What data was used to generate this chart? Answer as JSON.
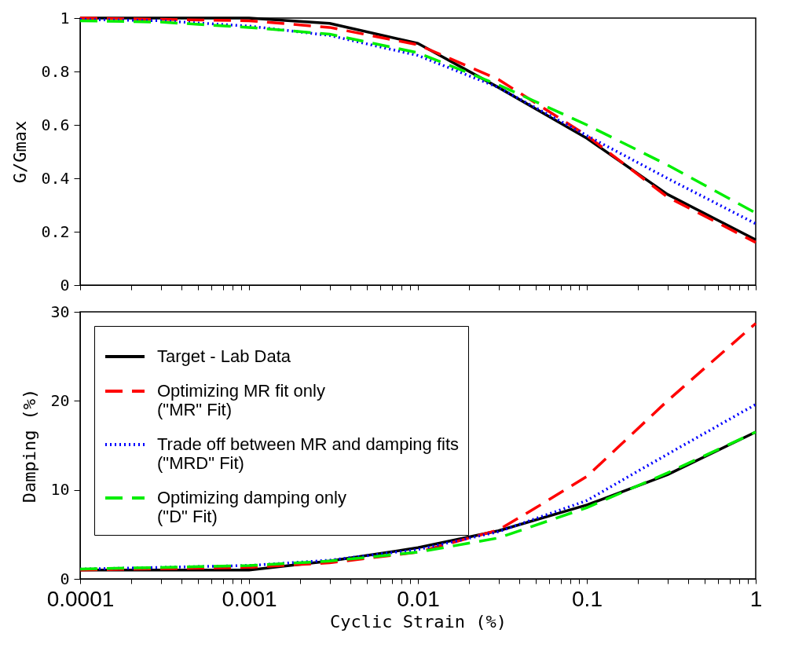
{
  "chart_data": [
    {
      "type": "line",
      "ylabel": "G/Gmax",
      "log": "x",
      "xlim": [
        0.0001,
        1
      ],
      "ylim": [
        0,
        1
      ],
      "yticks": [
        0,
        0.2,
        0.4,
        0.6,
        0.8,
        1
      ],
      "xticks": [
        0.0001,
        {
          "value": 0.0002,
          "label": null
        },
        {
          "value": 0.0003,
          "label": null
        },
        {
          "value": 0.0004,
          "label": null
        },
        {
          "value": 0.0005,
          "label": null
        },
        {
          "value": 0.0006,
          "label": null
        },
        {
          "value": 0.0007,
          "label": null
        },
        {
          "value": 0.0008,
          "label": null
        },
        {
          "value": 0.0009,
          "label": null
        },
        0.001,
        {
          "value": 0.002,
          "label": null
        },
        {
          "value": 0.003,
          "label": null
        },
        {
          "value": 0.004,
          "label": null
        },
        {
          "value": 0.005,
          "label": null
        },
        {
          "value": 0.006,
          "label": null
        },
        {
          "value": 0.007,
          "label": null
        },
        {
          "value": 0.008,
          "label": null
        },
        {
          "value": 0.009,
          "label": null
        },
        0.01,
        {
          "value": 0.02,
          "label": null
        },
        {
          "value": 0.03,
          "label": null
        },
        {
          "value": 0.04,
          "label": null
        },
        {
          "value": 0.05,
          "label": null
        },
        {
          "value": 0.06,
          "label": null
        },
        {
          "value": 0.07,
          "label": null
        },
        {
          "value": 0.08,
          "label": null
        },
        {
          "value": 0.09,
          "label": null
        },
        0.1,
        {
          "value": 0.2,
          "label": null
        },
        {
          "value": 0.3,
          "label": null
        },
        {
          "value": 0.4,
          "label": null
        },
        {
          "value": 0.5,
          "label": null
        },
        {
          "value": 0.6,
          "label": null
        },
        {
          "value": 0.7,
          "label": null
        },
        {
          "value": 0.8,
          "label": null
        },
        {
          "value": 0.9,
          "label": null
        },
        1
      ],
      "tick_labels": "y",
      "grid": false,
      "marker": "none",
      "series": [
        {
          "color": "#000000",
          "line_style": "solid",
          "x": [
            0.0001,
            0.001,
            0.003,
            0.01,
            0.03,
            0.1,
            0.3,
            1
          ],
          "values": [
            1,
            1,
            0.98,
            0.905,
            0.74,
            0.55,
            0.34,
            0.17
          ]
        },
        {
          "color": "#ff0000",
          "line_style": "dashed",
          "x": [
            0.0001,
            0.001,
            0.003,
            0.01,
            0.03,
            0.1,
            0.3,
            1
          ],
          "values": [
            1,
            0.99,
            0.965,
            0.9,
            0.77,
            0.56,
            0.33,
            0.16
          ]
        },
        {
          "color": "#0000ff",
          "line_style": "dotted",
          "x": [
            0.0001,
            0.0003,
            0.001,
            0.003,
            0.01,
            0.03,
            0.1,
            0.3,
            1
          ],
          "values": [
            0.995,
            0.99,
            0.97,
            0.935,
            0.86,
            0.74,
            0.56,
            0.4,
            0.23
          ]
        },
        {
          "color": "#00ee00",
          "line_style": "dashed",
          "x": [
            0.0001,
            0.0003,
            0.001,
            0.003,
            0.01,
            0.03,
            0.1,
            0.3,
            1
          ],
          "values": [
            0.99,
            0.985,
            0.965,
            0.94,
            0.87,
            0.75,
            0.6,
            0.45,
            0.27
          ]
        }
      ]
    },
    {
      "type": "line",
      "ylabel": "Damping (%)",
      "xlabel": "Cyclic Strain (%)",
      "log": "x",
      "xlim": [
        0.0001,
        1
      ],
      "ylim": [
        0,
        30
      ],
      "yticks": [
        0,
        10,
        20,
        30
      ],
      "xticks": [
        0.0001,
        {
          "value": 0.0002,
          "label": null
        },
        {
          "value": 0.0003,
          "label": null
        },
        {
          "value": 0.0004,
          "label": null
        },
        {
          "value": 0.0005,
          "label": null
        },
        {
          "value": 0.0006,
          "label": null
        },
        {
          "value": 0.0007,
          "label": null
        },
        {
          "value": 0.0008,
          "label": null
        },
        {
          "value": 0.0009,
          "label": null
        },
        0.001,
        {
          "value": 0.002,
          "label": null
        },
        {
          "value": 0.003,
          "label": null
        },
        {
          "value": 0.004,
          "label": null
        },
        {
          "value": 0.005,
          "label": null
        },
        {
          "value": 0.006,
          "label": null
        },
        {
          "value": 0.007,
          "label": null
        },
        {
          "value": 0.008,
          "label": null
        },
        {
          "value": 0.009,
          "label": null
        },
        0.01,
        {
          "value": 0.02,
          "label": null
        },
        {
          "value": 0.03,
          "label": null
        },
        {
          "value": 0.04,
          "label": null
        },
        {
          "value": 0.05,
          "label": null
        },
        {
          "value": 0.06,
          "label": null
        },
        {
          "value": 0.07,
          "label": null
        },
        {
          "value": 0.08,
          "label": null
        },
        {
          "value": 0.09,
          "label": null
        },
        0.1,
        {
          "value": 0.2,
          "label": null
        },
        {
          "value": 0.3,
          "label": null
        },
        {
          "value": 0.4,
          "label": null
        },
        {
          "value": 0.5,
          "label": null
        },
        {
          "value": 0.6,
          "label": null
        },
        {
          "value": 0.7,
          "label": null
        },
        {
          "value": 0.8,
          "label": null
        },
        {
          "value": 0.9,
          "label": null
        },
        1
      ],
      "grid": false,
      "marker": "none",
      "legend": "top left",
      "series": [
        {
          "name": "Target - Lab Data",
          "color": "#000000",
          "line_style": "solid",
          "x": [
            0.0001,
            0.001,
            0.003,
            0.01,
            0.03,
            0.1,
            0.3,
            1
          ],
          "values": [
            1,
            1,
            2,
            3.5,
            5.4,
            8.3,
            11.7,
            16.5
          ]
        },
        {
          "name": "Optimizing MR fit only\n(\"MR\" Fit)",
          "color": "#ff0000",
          "line_style": "dashed",
          "x": [
            0.0001,
            0.001,
            0.003,
            0.01,
            0.03,
            0.05,
            0.1,
            0.3,
            1
          ],
          "values": [
            1,
            1.3,
            1.8,
            3,
            5.5,
            8,
            11.5,
            20,
            28.7
          ]
        },
        {
          "name": "Trade off between MR and damping fits\n(\"MRD\" Fit)",
          "color": "#0000ff",
          "line_style": "dotted",
          "x": [
            0.0001,
            0.001,
            0.003,
            0.01,
            0.03,
            0.1,
            0.3,
            1
          ],
          "values": [
            1.1,
            1.5,
            2.1,
            3.3,
            5.3,
            8.8,
            14,
            19.6
          ]
        },
        {
          "name": "Optimizing damping only\n(\"D\" Fit)",
          "color": "#00ee00",
          "line_style": "dashed",
          "x": [
            0.0001,
            0.001,
            0.003,
            0.01,
            0.03,
            0.1,
            0.3,
            1
          ],
          "values": [
            1.1,
            1.5,
            2,
            3,
            4.6,
            8,
            11.9,
            16.5
          ]
        }
      ]
    }
  ]
}
